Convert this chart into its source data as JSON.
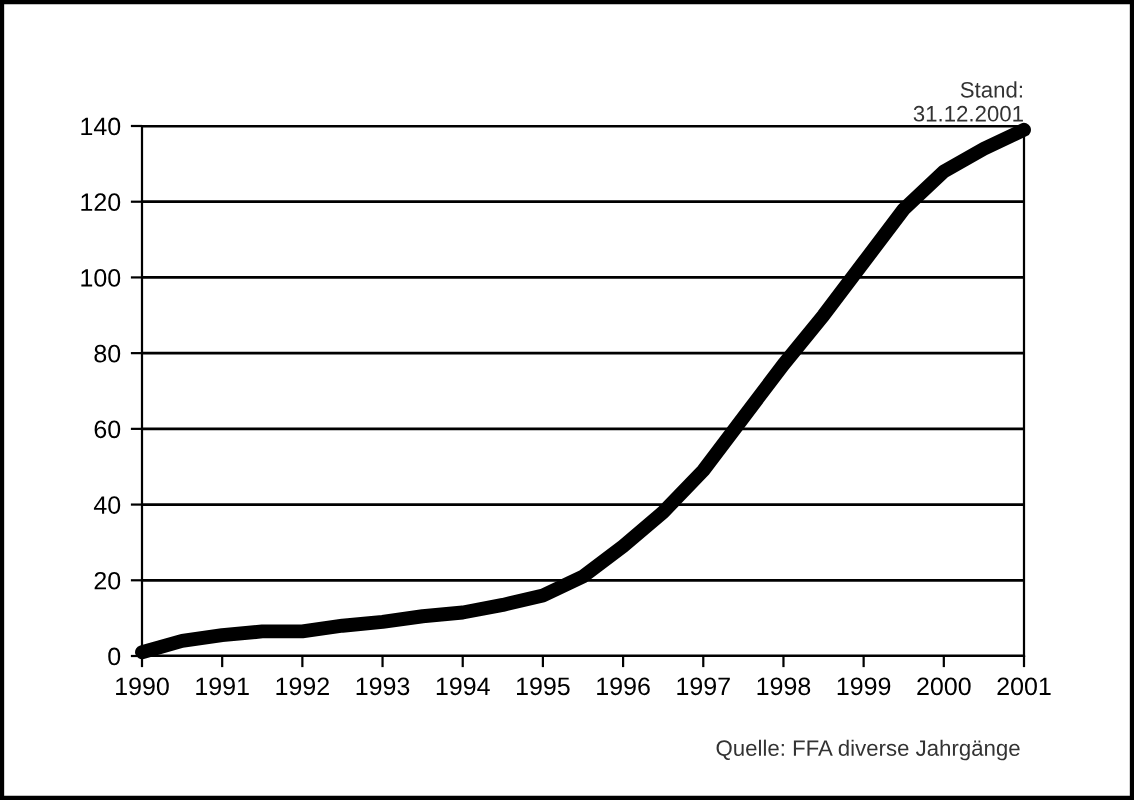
{
  "chart_data": {
    "type": "line",
    "x": [
      1990,
      1990.5,
      1991,
      1991.5,
      1992,
      1992.5,
      1993,
      1993.5,
      1994,
      1994.5,
      1995,
      1995.5,
      1996,
      1996.5,
      1997,
      1997.5,
      1998,
      1998.5,
      1999,
      1999.5,
      2000,
      2000.5,
      2001
    ],
    "series": [
      {
        "color": "#000000",
        "values": [
          1,
          4,
          5.5,
          6.5,
          6.5,
          8,
          9,
          10.5,
          11.5,
          13.5,
          16,
          21,
          29,
          38,
          49,
          63,
          77,
          90,
          104,
          118,
          128,
          134,
          139
        ]
      }
    ],
    "xlim": [
      1990,
      2001
    ],
    "xticks": [
      1990,
      1991,
      1992,
      1993,
      1994,
      1995,
      1996,
      1997,
      1998,
      1999,
      2000,
      2001
    ],
    "ylim": [
      0,
      140
    ],
    "yticks": [
      0,
      20,
      40,
      60,
      80,
      100,
      120,
      140
    ],
    "grid": "y",
    "marker": "none",
    "line_style": "solid",
    "legend": false,
    "annotations": [
      "Stand:\n31.12.2001",
      "Quelle: FFA diverse Jahrgänge"
    ]
  }
}
